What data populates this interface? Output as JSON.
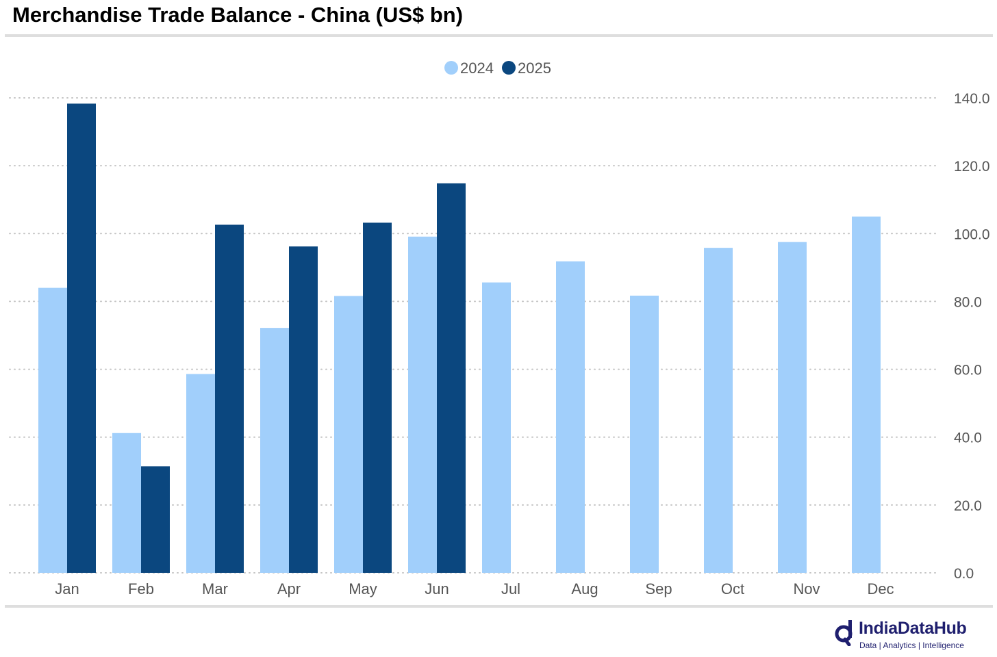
{
  "title": "Merchandise Trade Balance - China (US$ bn)",
  "brand": {
    "name": "IndiaDataHub",
    "tagline": "Data | Analytics | Intelligence",
    "color": "#1f1f6e"
  },
  "chart_data": {
    "type": "bar",
    "title": "Merchandise Trade Balance - China (US$ bn)",
    "categories": [
      "Jan",
      "Feb",
      "Mar",
      "Apr",
      "May",
      "Jun",
      "Jul",
      "Aug",
      "Sep",
      "Oct",
      "Nov",
      "Dec"
    ],
    "series": [
      {
        "name": "2024",
        "color": "#a1cffb",
        "values": [
          84.0,
          41.2,
          58.6,
          72.2,
          81.6,
          99.1,
          85.6,
          91.8,
          81.7,
          95.8,
          97.5,
          105.0
        ]
      },
      {
        "name": "2025",
        "color": "#0b477f",
        "values": [
          138.3,
          31.4,
          102.6,
          96.2,
          103.2,
          114.8,
          null,
          null,
          null,
          null,
          null,
          null
        ]
      }
    ],
    "ylim": [
      0,
      140
    ],
    "yticks": [
      0,
      20,
      40,
      60,
      80,
      100,
      120,
      140
    ],
    "ytick_labels": [
      "0.0",
      "20.0",
      "40.0",
      "60.0",
      "80.0",
      "100.0",
      "120.0",
      "140.0"
    ],
    "y_axis_position": "right",
    "xlabel": "",
    "ylabel": "",
    "grid": "horizontal dotted",
    "legend": "top-center"
  }
}
